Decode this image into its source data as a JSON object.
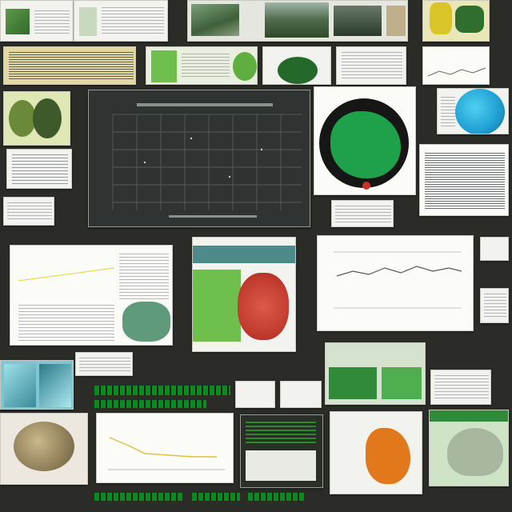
{
  "colors": {
    "background": "#2b2c27",
    "paper": "#f2f2ee",
    "accent_green": "#1fa04a",
    "accent_red": "#d23a2a",
    "accent_blue": "#1e9fd4",
    "accent_yellow": "#e4d43a"
  },
  "icons": {
    "globe": "globe-icon",
    "chart_main": "grid-chart-icon",
    "line_chart": "line-chart-icon"
  }
}
